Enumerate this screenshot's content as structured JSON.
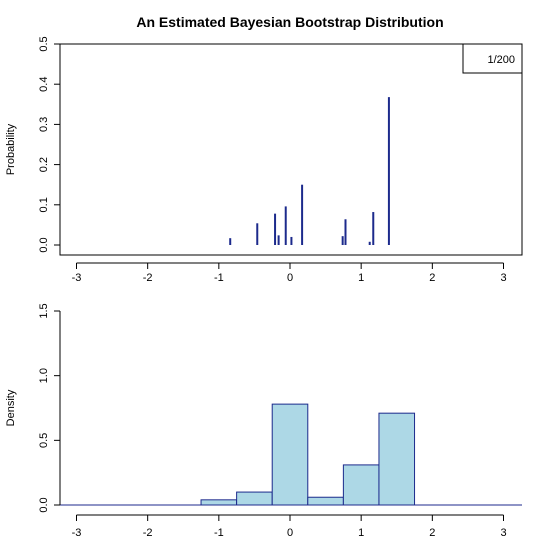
{
  "chart_data": [
    {
      "type": "bar",
      "subtype": "spike",
      "title": "An Estimated Bayesian Bootstrap Distribution",
      "xlabel": "",
      "ylabel": "Probability",
      "xlim": [
        -3,
        3
      ],
      "ylim": [
        0,
        0.5
      ],
      "xticks": [
        -3,
        -2,
        -1,
        0,
        1,
        2,
        3
      ],
      "yticks": [
        0.0,
        0.1,
        0.2,
        0.3,
        0.4,
        0.5
      ],
      "ytick_labels": [
        "0.0",
        "0.1",
        "0.2",
        "0.3",
        "0.4",
        "0.5"
      ],
      "legend": {
        "text": "1/200",
        "position": "top-right"
      },
      "bar_color": "#1c2a8c",
      "points": [
        {
          "x": -0.84,
          "y": 0.017
        },
        {
          "x": -0.46,
          "y": 0.054
        },
        {
          "x": -0.21,
          "y": 0.078
        },
        {
          "x": -0.16,
          "y": 0.024
        },
        {
          "x": -0.06,
          "y": 0.096
        },
        {
          "x": 0.02,
          "y": 0.02
        },
        {
          "x": 0.17,
          "y": 0.15
        },
        {
          "x": 0.74,
          "y": 0.022
        },
        {
          "x": 0.78,
          "y": 0.064
        },
        {
          "x": 1.12,
          "y": 0.008
        },
        {
          "x": 1.17,
          "y": 0.082
        },
        {
          "x": 1.39,
          "y": 0.368
        }
      ]
    },
    {
      "type": "bar",
      "subtype": "histogram",
      "title": "",
      "xlabel": "",
      "ylabel": "Density",
      "xlim": [
        -3,
        3
      ],
      "ylim": [
        0,
        1.5
      ],
      "xticks": [
        -3,
        -2,
        -1,
        0,
        1,
        2,
        3
      ],
      "yticks": [
        0.0,
        0.5,
        1.0,
        1.5
      ],
      "ytick_labels": [
        "0.0",
        "0.5",
        "1.0",
        "1.5"
      ],
      "fill_color": "#add8e6",
      "edge_color": "#1c2a8c",
      "bins": [
        {
          "x0": -1.25,
          "x1": -0.75,
          "density": 0.04
        },
        {
          "x0": -0.75,
          "x1": -0.25,
          "density": 0.1
        },
        {
          "x0": -0.25,
          "x1": 0.25,
          "density": 0.78
        },
        {
          "x0": 0.25,
          "x1": 0.75,
          "density": 0.06
        },
        {
          "x0": 0.75,
          "x1": 1.25,
          "density": 0.31
        },
        {
          "x0": 1.25,
          "x1": 1.75,
          "density": 0.71
        }
      ]
    }
  ]
}
